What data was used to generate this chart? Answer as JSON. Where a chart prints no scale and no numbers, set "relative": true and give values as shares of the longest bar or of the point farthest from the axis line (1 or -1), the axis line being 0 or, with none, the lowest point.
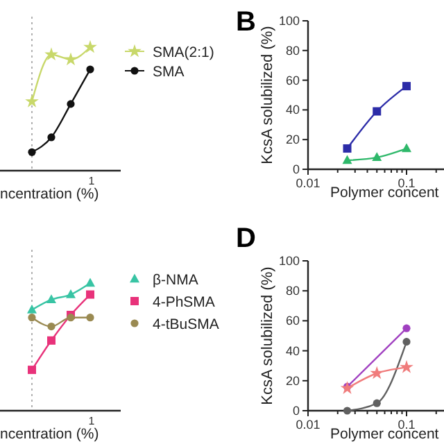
{
  "chart_data": [
    {
      "type": "line",
      "relative": true,
      "xlabel": "ncentration (%)",
      "categories": [
        null,
        null,
        null,
        null
      ],
      "annotations": [
        "1"
      ],
      "legend": "right",
      "line_style": "solid",
      "series": [
        {
          "name": "SMA(2:1)",
          "color": "#c8d86a",
          "marker": "star",
          "values": [
            0.56,
            0.94,
            0.9,
            1
          ]
        },
        {
          "name": "SMA",
          "color": "#111111",
          "marker": "circle",
          "values": [
            0.15,
            0.27,
            0.54,
            0.82
          ]
        }
      ]
    },
    {
      "type": "line",
      "title": "B",
      "ylabel": "KcsA solubilized (%)",
      "xlabel": "Polymer concent",
      "log": "x",
      "xlim": [
        0.01,
        0.24
      ],
      "ylim": [
        0,
        100
      ],
      "yticks": [
        0,
        20,
        40,
        60,
        80,
        100
      ],
      "xticks": [
        {
          "value": 0.01,
          "label": "0.01"
        },
        {
          "value": 0.02,
          "label": null
        },
        {
          "value": 0.03,
          "label": null
        },
        {
          "value": 0.04,
          "label": null
        },
        {
          "value": 0.05,
          "label": null
        },
        {
          "value": 0.06,
          "label": null
        },
        {
          "value": 0.07,
          "label": null
        },
        {
          "value": 0.08,
          "label": null
        },
        {
          "value": 0.09,
          "label": null
        },
        {
          "value": 0.1,
          "label": "0.1"
        },
        {
          "value": 0.2,
          "label": null
        }
      ],
      "x": [
        0.025,
        0.05,
        0.1
      ],
      "series": [
        {
          "color": "#2c2ca8",
          "marker": "square",
          "values": [
            14,
            39,
            56
          ]
        },
        {
          "color": "#2eb86a",
          "marker": "triangle",
          "values": [
            6,
            8,
            14
          ]
        }
      ]
    },
    {
      "type": "line",
      "relative": true,
      "xlabel": "ncentration (%)",
      "categories": [
        null,
        null,
        null,
        null
      ],
      "annotations": [
        "1"
      ],
      "legend": "right",
      "series": [
        {
          "name": "β-NMA",
          "color": "#38c4a4",
          "marker": "triangle",
          "values": [
            0.79,
            0.87,
            0.91,
            1
          ]
        },
        {
          "name": "4-PhSMA",
          "color": "#e8327a",
          "marker": "square",
          "values": [
            0.32,
            0.55,
            0.75,
            0.91
          ]
        },
        {
          "name": "4-tBuSMA",
          "color": "#9a8a52",
          "marker": "circle",
          "values": [
            0.73,
            0.66,
            0.73,
            0.73
          ]
        }
      ]
    },
    {
      "type": "line",
      "title": "D",
      "ylabel": "KcsA solubilized (%)",
      "xlabel": "Polymer concent",
      "log": "x",
      "xlim": [
        0.01,
        0.24
      ],
      "ylim": [
        0,
        100
      ],
      "yticks": [
        0,
        20,
        40,
        60,
        80,
        100
      ],
      "xticks": [
        {
          "value": 0.01,
          "label": "0.01"
        },
        {
          "value": 0.02,
          "label": null
        },
        {
          "value": 0.03,
          "label": null
        },
        {
          "value": 0.04,
          "label": null
        },
        {
          "value": 0.05,
          "label": null
        },
        {
          "value": 0.06,
          "label": null
        },
        {
          "value": 0.07,
          "label": null
        },
        {
          "value": 0.08,
          "label": null
        },
        {
          "value": 0.09,
          "label": null
        },
        {
          "value": 0.1,
          "label": "0.1"
        },
        {
          "value": 0.2,
          "label": null
        }
      ],
      "series": [
        {
          "color": "#a040c0",
          "marker": "circle",
          "x": [
            0.025,
            0.1
          ],
          "values": [
            16,
            55
          ]
        },
        {
          "color": "#606060",
          "marker": "circle",
          "x": [
            0.025,
            0.05,
            0.1
          ],
          "values": [
            0,
            5,
            46
          ]
        },
        {
          "color": "#f07c7c",
          "marker": "star",
          "x": [
            0.025,
            0.05,
            0.1
          ],
          "values": [
            15,
            25,
            29
          ]
        }
      ]
    }
  ]
}
